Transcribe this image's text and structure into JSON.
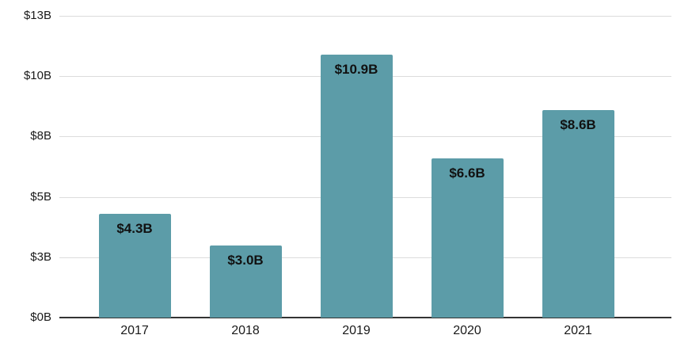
{
  "chart_data": {
    "type": "bar",
    "title": "",
    "xlabel": "",
    "ylabel": "",
    "categories": [
      "2017",
      "2018",
      "2019",
      "2020",
      "2021"
    ],
    "values": [
      4.3,
      3.0,
      10.9,
      6.6,
      8.6
    ],
    "bar_labels": [
      "$4.3B",
      "$3.0B",
      "$10.9B",
      "$6.6B",
      "$8.6B"
    ],
    "ylim": [
      0,
      12.5
    ],
    "yticks": {
      "values": [
        0,
        2.5,
        5,
        7.5,
        10,
        12.5
      ],
      "labels": [
        "$0B",
        "$3B",
        "$5B",
        "$8B",
        "$10B",
        "$13B"
      ]
    },
    "grid": true,
    "legend": false,
    "bar_label_position": "inside-top",
    "colors": {
      "bar": "#5C9CA8",
      "gridline": "#dcdcdc",
      "baseline": "#333333",
      "text": "#1a1a1a"
    }
  }
}
